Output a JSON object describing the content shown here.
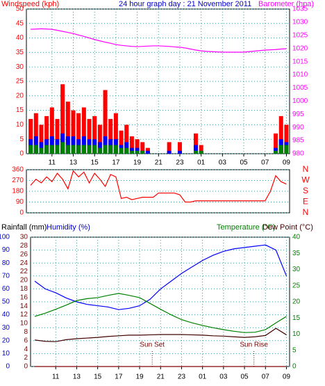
{
  "chart_data": [
    {
      "type": "bar",
      "title": "24 hour graph day : 21 November 2011",
      "ylabel": "Windspeed (kph)",
      "y2label": "Barometer (hpa)",
      "x": [
        9,
        9.5,
        10,
        10.5,
        11,
        11.5,
        12,
        12.5,
        13,
        13.5,
        14,
        14.5,
        15,
        15.5,
        16,
        16.5,
        17,
        17.5,
        18,
        18.5,
        19,
        19.5,
        20,
        20.5,
        21,
        21.5,
        22,
        22.5,
        23,
        23.5,
        24,
        24.5,
        25,
        25.5,
        26,
        26.5,
        27,
        27.5,
        28,
        28.5,
        29,
        29.5,
        30,
        30.5,
        31,
        31.5,
        32,
        32.5,
        33
      ],
      "xlim": [
        8.6,
        33.3
      ],
      "xticks": [
        11,
        13,
        15,
        17,
        19,
        21,
        23,
        {
          "value": 25,
          "label": "01"
        },
        {
          "value": 27,
          "label": "03"
        },
        {
          "value": 29,
          "label": "05"
        },
        {
          "value": 31,
          "label": "07"
        },
        {
          "value": 33,
          "label": "09"
        }
      ],
      "ylim": [
        0,
        50
      ],
      "yticks": [
        0,
        5,
        10,
        15,
        20,
        25,
        30,
        35,
        40,
        45,
        50
      ],
      "ycolor": "#ff0000",
      "y2lim": [
        980,
        1035
      ],
      "y2ticks": [
        980,
        985,
        990,
        995,
        1000,
        1005,
        1010,
        1015,
        1020,
        1025,
        1030,
        1035
      ],
      "y2color": "#ff00ff",
      "grid": true,
      "series": [
        {
          "color": "#ff0000",
          "values": [
            12,
            14,
            10,
            13,
            16,
            12,
            24,
            18,
            15,
            14,
            16,
            12,
            13,
            10,
            22,
            12,
            14,
            8,
            10,
            6,
            5,
            4,
            2,
            0,
            0,
            0,
            4,
            0,
            4,
            0,
            0,
            7,
            3,
            0,
            0,
            0,
            0,
            0,
            0,
            0,
            0,
            0,
            0,
            0,
            0,
            0,
            7,
            13,
            10
          ]
        },
        {
          "color": "#0000ff",
          "values": [
            5,
            6,
            4,
            5,
            6,
            5,
            7,
            6,
            6,
            5,
            6,
            5,
            5,
            4,
            6,
            5,
            5,
            3,
            4,
            2,
            2,
            1,
            1,
            0,
            0,
            0,
            1,
            0,
            1,
            0,
            0,
            3,
            1,
            0,
            0,
            0,
            0,
            0,
            0,
            0,
            0,
            0,
            0,
            0,
            0,
            0,
            2,
            5,
            4
          ]
        },
        {
          "color": "#008000",
          "values": [
            3,
            3,
            2,
            3,
            3,
            3,
            4,
            3,
            3,
            3,
            3,
            3,
            3,
            2,
            3,
            3,
            3,
            2,
            2,
            1,
            1,
            1,
            0,
            0,
            0,
            0,
            0,
            0,
            0,
            0,
            0,
            1,
            1,
            0,
            0,
            0,
            0,
            0,
            0,
            0,
            0,
            0,
            0,
            0,
            0,
            0,
            1,
            3,
            3
          ]
        },
        {
          "color": "#ff00ff",
          "type": "line",
          "axis": "y2",
          "values": [
            1027.3,
            1027.4,
            1027.5,
            1027.4,
            1027.3,
            1026.9,
            1026.5,
            1026.1,
            1025.7,
            1025.1,
            1024.6,
            1024.0,
            1023.4,
            1022.9,
            1022.4,
            1022.0,
            1021.5,
            1021.2,
            1021.0,
            1020.8,
            1020.7,
            1020.8,
            1020.9,
            1021.0,
            1021.0,
            1020.9,
            1020.8,
            1020.6,
            1020.5,
            1020.2,
            1019.8,
            1019.4,
            1019.1,
            1018.9,
            1018.8,
            1018.7,
            1018.6,
            1018.6,
            1018.6,
            1018.6,
            1018.6,
            1018.8,
            1019.0,
            1019.2,
            1019.4,
            1019.5,
            1019.6,
            1019.8,
            1019.9
          ]
        }
      ]
    },
    {
      "type": "line",
      "x": [
        9,
        9.5,
        10,
        10.5,
        11,
        11.5,
        12,
        12.5,
        13,
        13.5,
        14,
        14.5,
        15,
        15.5,
        16,
        16.5,
        17,
        17.5,
        18,
        18.5,
        19,
        19.5,
        20,
        20.5,
        21,
        21.5,
        22,
        22.5,
        23,
        23.5,
        24,
        24.5,
        25,
        25.5,
        26,
        26.5,
        27,
        27.5,
        28,
        28.5,
        29,
        29.5,
        30,
        30.5,
        31,
        31.5,
        32,
        32.5,
        33
      ],
      "xlim": [
        8.6,
        33.3
      ],
      "ylim": [
        0,
        360
      ],
      "yticks": [
        0,
        90,
        180,
        270,
        360
      ],
      "ycolor": "#ff0000",
      "y2lim": [
        0,
        360
      ],
      "y2ticks": [
        {
          "value": 360,
          "label": "N"
        },
        {
          "value": 270,
          "label": "W"
        },
        {
          "value": 180,
          "label": "S"
        },
        {
          "value": 90,
          "label": "E"
        },
        {
          "value": 0,
          "label": "N"
        }
      ],
      "y2color": "#ff0000",
      "grid": true,
      "series": [
        {
          "color": "#ff0000",
          "values": [
            230,
            280,
            250,
            300,
            260,
            330,
            280,
            200,
            350,
            300,
            340,
            250,
            330,
            280,
            220,
            320,
            300,
            120,
            130,
            110,
            120,
            130,
            130,
            130,
            165,
            165,
            165,
            165,
            150,
            90,
            90,
            100,
            100,
            100,
            100,
            100,
            100,
            100,
            100,
            100,
            100,
            100,
            100,
            100,
            100,
            180,
            310,
            260,
            240
          ]
        }
      ]
    },
    {
      "type": "line",
      "x": [
        9,
        10,
        11,
        12,
        13,
        14,
        15,
        16,
        17,
        18,
        19,
        20,
        21,
        22,
        23,
        24,
        25,
        26,
        27,
        28,
        29,
        30,
        31,
        32,
        33
      ],
      "xlim": [
        8.6,
        33.3
      ],
      "xticks": [
        11,
        13,
        15,
        17,
        19,
        21,
        23,
        {
          "value": 25,
          "label": "01"
        },
        {
          "value": 27,
          "label": "03"
        },
        {
          "value": 29,
          "label": "05"
        },
        {
          "value": 31,
          "label": "07"
        },
        {
          "value": 33,
          "label": "09"
        }
      ],
      "ylim": [
        0,
        100
      ],
      "yticks": [
        0,
        10,
        20,
        30,
        40,
        50,
        60,
        70,
        80,
        90,
        100
      ],
      "ycolor": "#0000cc",
      "y3lim": [
        0,
        30
      ],
      "y3ticks": [
        0,
        2,
        4,
        6,
        8,
        10,
        12,
        14,
        16,
        18,
        20,
        22,
        24,
        26,
        28,
        30
      ],
      "y3color": "#800000",
      "y2lim": [
        0,
        40
      ],
      "y2ticks": [
        0,
        5,
        10,
        15,
        20,
        25,
        30,
        35,
        40
      ],
      "y2color": "#008000",
      "grid": true,
      "series": [
        {
          "name": "Humidity (%)",
          "color": "#0000ff",
          "axis": "y",
          "values": [
            66,
            60,
            57,
            53,
            50,
            48,
            47,
            46,
            44,
            45,
            47,
            52,
            60,
            66,
            72,
            77,
            82,
            86,
            89,
            91,
            92,
            93,
            94,
            90,
            70
          ]
        },
        {
          "name": "Rainfall (mm)",
          "color": "#800000",
          "axis": "y3",
          "values": [
            0,
            0,
            0,
            0,
            0,
            0,
            0,
            0,
            0,
            0,
            0,
            0,
            0,
            0,
            0,
            0,
            0,
            0,
            0,
            0,
            0,
            0,
            0,
            0,
            0
          ]
        },
        {
          "name": "Temperature (°C)",
          "color": "#008000",
          "axis": "y2",
          "values": [
            15.5,
            16.5,
            17.7,
            19,
            20.4,
            21,
            21.3,
            22,
            22.6,
            22,
            21.3,
            19.5,
            17.7,
            16,
            14.5,
            13.5,
            12.7,
            12,
            11.4,
            10.9,
            10.5,
            10.6,
            11.4,
            13.5,
            15.5
          ]
        },
        {
          "name": "Dew Point (°C)",
          "color": "#400000",
          "axis": "y2",
          "values": [
            8.2,
            7.8,
            7.7,
            8.3,
            8.6,
            8.8,
            9,
            9.3,
            9.5,
            9.7,
            9.7,
            9.8,
            9.9,
            9.9,
            9.9,
            9.8,
            9.7,
            9.5,
            9.4,
            9.2,
            9,
            9.2,
            9.6,
            11.8,
            9.8
          ]
        }
      ],
      "annotations": [
        {
          "text": "Sun Set",
          "x": 20.2
        },
        {
          "text": "Sun Rise",
          "x": 29.9
        }
      ]
    }
  ]
}
